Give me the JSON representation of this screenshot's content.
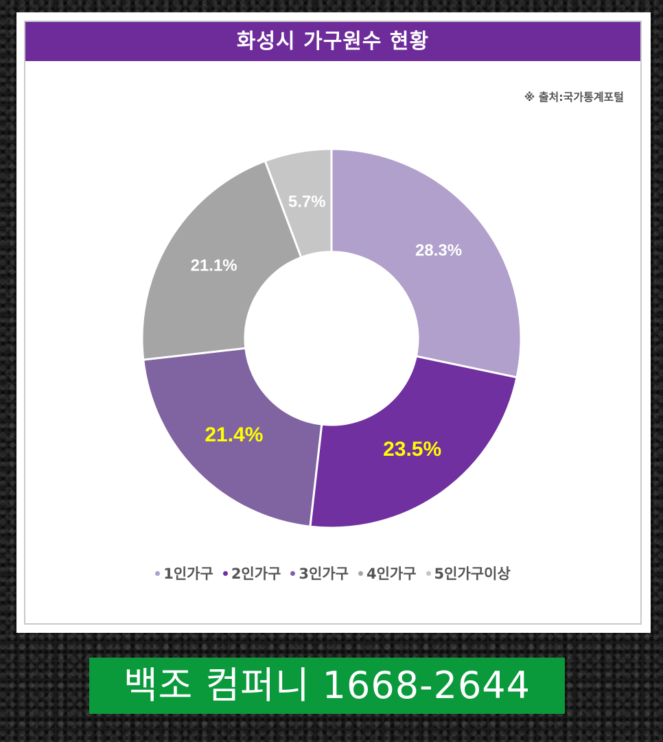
{
  "card": {
    "title": "화성시 가구원수 현황",
    "source": "※ 출처:국가통계포털"
  },
  "chart_data": {
    "type": "pie",
    "variant": "donut",
    "title": "화성시 가구원수 현황",
    "categories": [
      "1인가구",
      "2인가구",
      "3인가구",
      "4인가구",
      "5인가구이상"
    ],
    "values": [
      28.3,
      23.5,
      21.4,
      21.1,
      5.7
    ],
    "labels": [
      "28.3%",
      "23.5%",
      "21.4%",
      "21.1%",
      "5.7%"
    ],
    "colors": [
      "#b0a0cb",
      "#7030a0",
      "#8064a2",
      "#a5a5a5",
      "#c6c6c6"
    ],
    "label_colors": [
      "#ffffff",
      "#ffff00",
      "#ffff00",
      "#ffffff",
      "#ffffff"
    ],
    "legend_position": "bottom",
    "start_angle": "12 o'clock, clockwise"
  },
  "banner": {
    "text": "백조 컴퍼니 1668-2644",
    "color": "#0a9a3c"
  }
}
